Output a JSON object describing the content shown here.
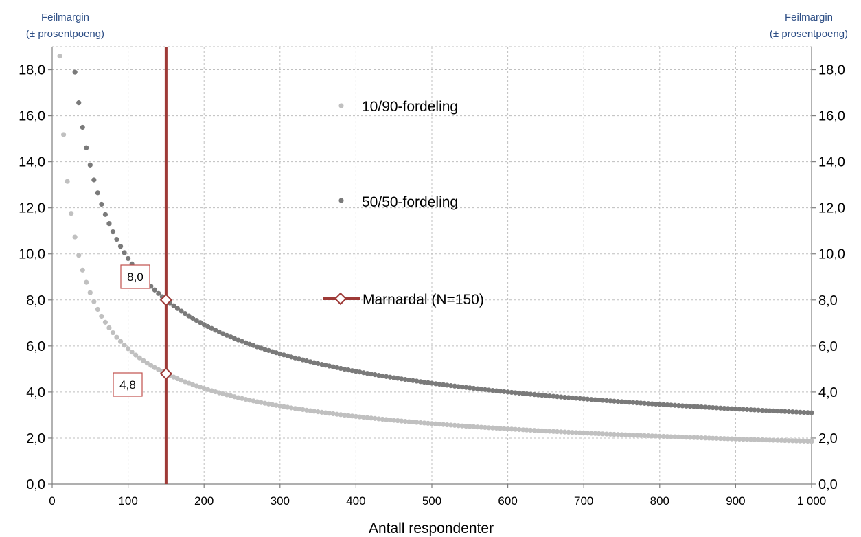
{
  "chart_data": {
    "type": "scatter",
    "xlabel": "Antall respondenter",
    "ylabel_left": [
      "Feilmargin",
      "(± prosentpoeng)"
    ],
    "ylabel_right": [
      "Feilmargin",
      "(± prosentpoeng)"
    ],
    "xlim": [
      0,
      1000
    ],
    "ylim": [
      0,
      19
    ],
    "x_ticks": [
      0,
      100,
      200,
      300,
      400,
      500,
      600,
      700,
      800,
      900,
      1000
    ],
    "x_tick_labels": [
      "0",
      "100",
      "200",
      "300",
      "400",
      "500",
      "600",
      "700",
      "800",
      "900",
      "1 000"
    ],
    "y_ticks": [
      0,
      2,
      4,
      6,
      8,
      10,
      12,
      14,
      16,
      18
    ],
    "y_tick_labels": [
      "0,0",
      "2,0",
      "4,0",
      "6,0",
      "8,0",
      "10,0",
      "12,0",
      "14,0",
      "16,0",
      "18,0"
    ],
    "grid": true,
    "legend_placement": "inside-center",
    "series": [
      {
        "name": "10/90-fordeling",
        "p": 0.1,
        "color": "#c0c0c0",
        "x_start": 10,
        "x_end": 1000,
        "x_step": 5
      },
      {
        "name": "50/50-fordeling",
        "p": 0.5,
        "color": "#7a7a7a",
        "x_start": 30,
        "x_end": 1000,
        "x_step": 5
      }
    ],
    "reference_line": {
      "name": "Marnardal (N=150)",
      "x": 150,
      "color": "#9e3a37"
    },
    "annotations": [
      {
        "text": "8,0",
        "x": 150,
        "y": 8.0
      },
      {
        "text": "4,8",
        "x": 150,
        "y": 4.8
      }
    ]
  }
}
